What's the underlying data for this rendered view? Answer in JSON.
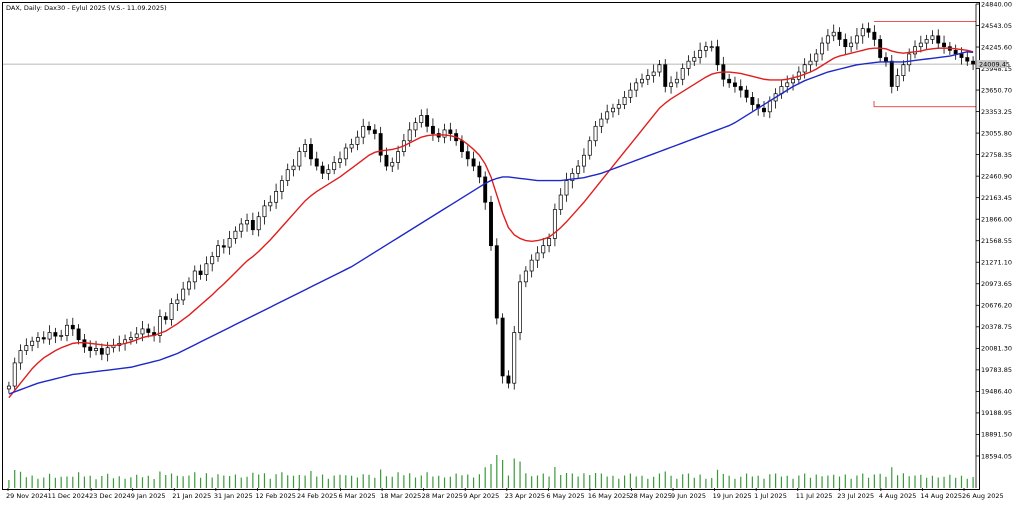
{
  "chart_data": {
    "type": "candlestick",
    "title": "DAX, Daily:  Dax30 - Eylul 2025 (V.S.- 11.09.2025)",
    "xlabel": "",
    "ylabel": "",
    "ylim": [
      18400,
      24840
    ],
    "y_ticks": [
      "24840.00",
      "24543.05",
      "24245.60",
      "23948.15",
      "23650.70",
      "23353.25",
      "23055.80",
      "22758.35",
      "22460.90",
      "22163.45",
      "21866.00",
      "21568.55",
      "21271.10",
      "20973.65",
      "20676.20",
      "20378.75",
      "20081.30",
      "19783.85",
      "19486.40",
      "19188.95",
      "18891.50",
      "18594.05"
    ],
    "x_ticks": [
      "29 Nov 2024",
      "11 Dec 2024",
      "23 Dec 2024",
      "9 Jan 2025",
      "21 Jan 2025",
      "31 Jan 2025",
      "12 Feb 2025",
      "24 Feb 2025",
      "6 Mar 2025",
      "18 Mar 2025",
      "28 Mar 2025",
      "9 Apr 2025",
      "23 Apr 2025",
      "6 May 2025",
      "16 May 2025",
      "28 May 2025",
      "9 Jun 2025",
      "19 Jun 2025",
      "1 Jul 2025",
      "11 Jul 2025",
      "23 Jul 2025",
      "4 Aug 2025",
      "14 Aug 2025",
      "26 Aug 2025"
    ],
    "current_price": "24009.45",
    "closes": [
      19560,
      19880,
      20050,
      20120,
      20180,
      20230,
      20210,
      20300,
      20250,
      20260,
      20400,
      20350,
      20200,
      20100,
      20050,
      20080,
      20000,
      20090,
      20120,
      20150,
      20200,
      20230,
      20280,
      20350,
      20300,
      20260,
      20520,
      20480,
      20700,
      20750,
      20900,
      21000,
      21150,
      21100,
      21250,
      21350,
      21500,
      21480,
      21600,
      21700,
      21800,
      21850,
      21720,
      21900,
      22050,
      22100,
      22250,
      22400,
      22550,
      22600,
      22800,
      22900,
      22700,
      22600,
      22500,
      22550,
      22650,
      22700,
      22850,
      22900,
      23000,
      23150,
      23100,
      23050,
      22750,
      22600,
      22650,
      22800,
      22950,
      23100,
      23200,
      23300,
      23150,
      23050,
      23000,
      23100,
      23050,
      22950,
      22800,
      22700,
      22600,
      22450,
      22100,
      21500,
      20500,
      19700,
      19600,
      20300,
      21000,
      21150,
      21300,
      21400,
      21500,
      21600,
      22000,
      22200,
      22400,
      22500,
      22600,
      22750,
      22950,
      23150,
      23250,
      23350,
      23400,
      23450,
      23550,
      23650,
      23750,
      23800,
      23850,
      23900,
      24000,
      23700,
      23750,
      23800,
      23950,
      24050,
      24100,
      24200,
      24250,
      24250,
      24000,
      23800,
      23750,
      23700,
      23650,
      23550,
      23450,
      23400,
      23350,
      23500,
      23600,
      23700,
      23750,
      23800,
      23900,
      24000,
      24050,
      24150,
      24300,
      24400,
      24450,
      24350,
      24250,
      24300,
      24400,
      24500,
      24450,
      24350,
      24100,
      24050,
      23700,
      23850,
      24000,
      24150,
      24250,
      24300,
      24350,
      24400,
      24300,
      24250,
      24200,
      24150,
      24100,
      24050,
      24009.45
    ],
    "series": [
      {
        "name": "",
        "color": "#e01e1e",
        "values": [
          19400,
          19500,
          19600,
          19700,
          19800,
          19880,
          19950,
          20000,
          20050,
          20090,
          20120,
          20150,
          20160,
          20160,
          20150,
          20140,
          20130,
          20120,
          20120,
          20130,
          20150,
          20170,
          20200,
          20230,
          20250,
          20260,
          20290,
          20320,
          20370,
          20420,
          20480,
          20540,
          20610,
          20680,
          20750,
          20820,
          20900,
          20970,
          21050,
          21130,
          21210,
          21290,
          21350,
          21420,
          21500,
          21580,
          21670,
          21760,
          21850,
          21940,
          22030,
          22120,
          22190,
          22250,
          22300,
          22350,
          22400,
          22450,
          22510,
          22570,
          22630,
          22690,
          22750,
          22790,
          22810,
          22820,
          22830,
          22850,
          22880,
          22920,
          22960,
          23000,
          23020,
          23030,
          23030,
          23030,
          23020,
          23000,
          22960,
          22900,
          22830,
          22750,
          22630,
          22450,
          22200,
          21950,
          21750,
          21650,
          21600,
          21570,
          21560,
          21570,
          21590,
          21620,
          21680,
          21750,
          21830,
          21920,
          22010,
          22100,
          22200,
          22300,
          22400,
          22500,
          22600,
          22700,
          22800,
          22900,
          23000,
          23100,
          23200,
          23300,
          23400,
          23470,
          23530,
          23580,
          23630,
          23680,
          23730,
          23780,
          23830,
          23870,
          23890,
          23900,
          23900,
          23890,
          23880,
          23860,
          23840,
          23820,
          23800,
          23790,
          23790,
          23790,
          23800,
          23820,
          23840,
          23870,
          23900,
          23940,
          23990,
          24040,
          24090,
          24120,
          24140,
          24160,
          24180,
          24200,
          24220,
          24230,
          24230,
          24220,
          24190,
          24170,
          24160,
          24170,
          24180,
          24190,
          24210,
          24220,
          24230,
          24230,
          24230,
          24220,
          24210,
          24200,
          24180
        ]
      },
      {
        "name": "",
        "color": "#1e28c8",
        "values": [
          19450,
          19480,
          19510,
          19540,
          19570,
          19600,
          19620,
          19640,
          19660,
          19680,
          19700,
          19720,
          19730,
          19740,
          19750,
          19760,
          19770,
          19780,
          19790,
          19800,
          19810,
          19820,
          19840,
          19860,
          19880,
          19900,
          19920,
          19950,
          19980,
          20010,
          20050,
          20090,
          20130,
          20170,
          20210,
          20250,
          20290,
          20330,
          20370,
          20410,
          20450,
          20490,
          20530,
          20570,
          20610,
          20650,
          20690,
          20730,
          20770,
          20810,
          20850,
          20890,
          20930,
          20970,
          21010,
          21050,
          21090,
          21130,
          21170,
          21210,
          21260,
          21310,
          21360,
          21410,
          21460,
          21510,
          21560,
          21610,
          21660,
          21710,
          21760,
          21810,
          21860,
          21910,
          21960,
          22010,
          22060,
          22110,
          22160,
          22210,
          22260,
          22310,
          22360,
          22400,
          22430,
          22450,
          22450,
          22440,
          22430,
          22420,
          22410,
          22400,
          22400,
          22400,
          22400,
          22400,
          22410,
          22420,
          22430,
          22440,
          22460,
          22480,
          22500,
          22530,
          22560,
          22590,
          22620,
          22650,
          22680,
          22710,
          22740,
          22770,
          22800,
          22830,
          22860,
          22890,
          22920,
          22950,
          22980,
          23010,
          23040,
          23070,
          23100,
          23130,
          23160,
          23200,
          23250,
          23300,
          23350,
          23400,
          23450,
          23500,
          23550,
          23600,
          23650,
          23700,
          23740,
          23780,
          23810,
          23840,
          23870,
          23900,
          23920,
          23940,
          23960,
          23980,
          24000,
          24010,
          24020,
          24030,
          24040,
          24040,
          24040,
          24040,
          24040,
          24050,
          24060,
          24070,
          24080,
          24090,
          24100,
          24110,
          24120,
          24140,
          24160,
          24180,
          24170
        ]
      }
    ],
    "horizontal_lines": [
      {
        "value": 24600,
        "color": "#e01e1e"
      },
      {
        "value": 24009.45,
        "color": "#a0a0a0"
      },
      {
        "value": 23420,
        "color": "#e01e1e"
      }
    ],
    "grid": false,
    "legend": "none"
  }
}
